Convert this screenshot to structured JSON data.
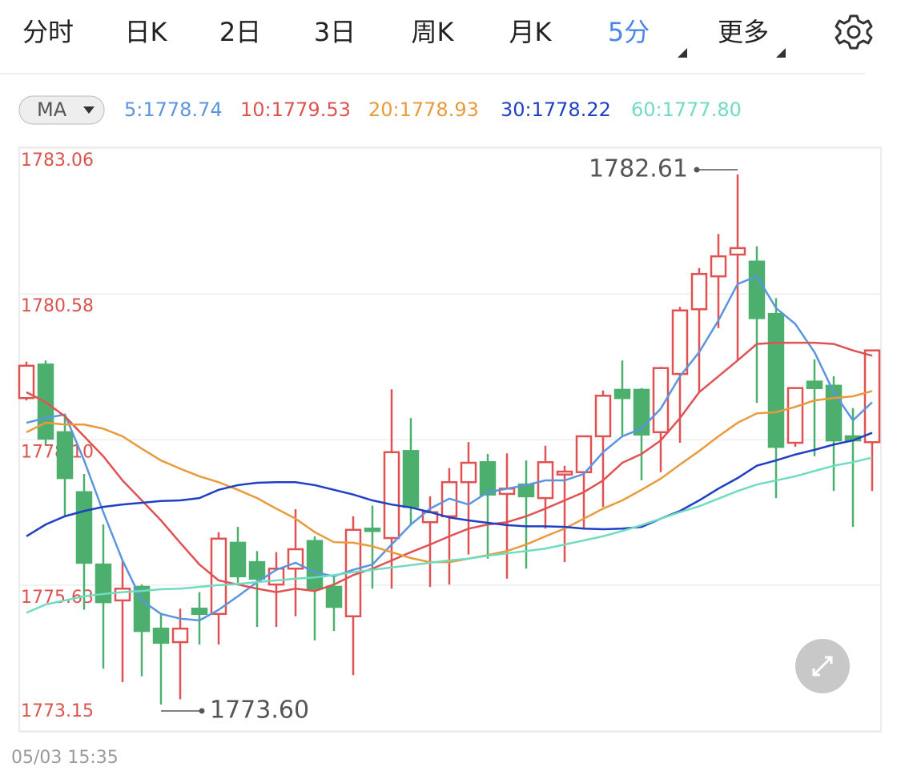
{
  "tabs": {
    "items": [
      "分时",
      "日K",
      "2日",
      "3日",
      "周K",
      "月K",
      "5分",
      "更多"
    ],
    "active": 6
  },
  "ma_button": "MA",
  "chart_data": {
    "type": "candlestick",
    "up_color": "#e05252",
    "down_color": "#4caf6e",
    "ylim": [
      1773.15,
      1783.06
    ],
    "yticks": [
      1783.06,
      1780.58,
      {
        "value": 1778.1,
        "label": "1778.10"
      },
      1775.63,
      1773.15
    ],
    "grid": true,
    "open": [
      1778.81,
      1779.38,
      1778.23,
      1777.21,
      1775.98,
      1775.37,
      1775.6,
      1774.89,
      1774.66,
      1775.23,
      1775.14,
      1776.35,
      1776.02,
      1775.64,
      1775.91,
      1776.38,
      1775.6,
      1775.1,
      1776.59,
      1776.43,
      1777.91,
      1776.7,
      1776.8,
      1777.38,
      1777.72,
      1777.18,
      1777.34,
      1777.11,
      1777.51,
      1777.55,
      1778.16,
      1778.95,
      1778.95,
      1778.23,
      1779.22,
      1780.32,
      1780.88,
      1781.25,
      1781.13,
      1780.24,
      1778.05,
      1779.09,
      1779.02,
      1778.16,
      1778.06
    ],
    "high": [
      1779.43,
      1779.45,
      1778.5,
      1777.52,
      1776.66,
      1776.05,
      1775.64,
      1775.16,
      1775.23,
      1775.51,
      1776.53,
      1776.62,
      1776.21,
      1776.19,
      1776.92,
      1776.46,
      1775.78,
      1776.8,
      1776.98,
      1778.96,
      1778.47,
      1777.14,
      1777.62,
      1778.06,
      1777.86,
      1777.87,
      1777.75,
      1778.0,
      1777.66,
      1778.16,
      1778.94,
      1779.45,
      1778.98,
      1779.34,
      1780.36,
      1781.02,
      1781.6,
      1782.61,
      1781.39,
      1780.51,
      1778.98,
      1779.47,
      1779.18,
      1778.64,
      1779.62
    ],
    "low": [
      1778.77,
      1778.02,
      1776.8,
      1775.21,
      1774.21,
      1773.98,
      1774.08,
      1773.6,
      1773.69,
      1774.62,
      1774.62,
      1775.67,
      1774.92,
      1774.92,
      1775.1,
      1774.69,
      1774.85,
      1774.1,
      1775.57,
      1775.57,
      1776.66,
      1775.6,
      1775.64,
      1776.15,
      1776.08,
      1775.74,
      1775.91,
      1776.59,
      1776.02,
      1776.59,
      1776.96,
      1778.16,
      1777.41,
      1777.55,
      1778.05,
      1778.91,
      1780.0,
      1779.45,
      1778.73,
      1777.11,
      1777.98,
      1777.82,
      1777.23,
      1776.62,
      1777.23
    ],
    "close": [
      1779.36,
      1778.12,
      1777.45,
      1776.01,
      1775.34,
      1775.57,
      1774.85,
      1774.65,
      1774.89,
      1775.14,
      1776.42,
      1775.78,
      1775.74,
      1775.91,
      1776.24,
      1775.57,
      1775.26,
      1776.57,
      1776.55,
      1777.89,
      1776.96,
      1776.87,
      1777.38,
      1777.71,
      1777.17,
      1777.27,
      1777.14,
      1777.72,
      1777.56,
      1778.16,
      1778.85,
      1778.81,
      1778.19,
      1779.32,
      1780.3,
      1780.92,
      1781.22,
      1781.36,
      1780.17,
      1777.98,
      1778.98,
      1778.98,
      1778.09,
      1778.09,
      1779.62
    ],
    "ma_series": [
      {
        "name": "5:1778.74",
        "color": "#5b95e0",
        "values": [
          1778.39,
          1778.47,
          1778.53,
          1777.75,
          1776.87,
          1776.05,
          1775.37,
          1775.14,
          1775.06,
          1775.03,
          1775.21,
          1775.44,
          1775.68,
          1775.89,
          1776.01,
          1775.85,
          1775.78,
          1775.89,
          1775.98,
          1776.32,
          1776.66,
          1776.93,
          1777.1,
          1777.0,
          1777.21,
          1777.27,
          1777.33,
          1777.41,
          1777.41,
          1777.52,
          1777.89,
          1778.16,
          1778.29,
          1778.63,
          1779.18,
          1779.59,
          1780.13,
          1780.75,
          1780.88,
          1780.34,
          1780.07,
          1779.59,
          1778.91,
          1778.43,
          1778.74
        ]
      },
      {
        "name": "10:1779.53",
        "color": "#e05252",
        "values": [
          1778.91,
          1778.74,
          1778.5,
          1778.16,
          1777.82,
          1777.41,
          1777.07,
          1776.73,
          1776.35,
          1775.98,
          1775.71,
          1775.64,
          1775.57,
          1775.51,
          1775.57,
          1775.53,
          1775.64,
          1775.8,
          1775.91,
          1776.05,
          1776.19,
          1776.32,
          1776.46,
          1776.59,
          1776.66,
          1776.7,
          1776.8,
          1776.93,
          1777.07,
          1777.21,
          1777.41,
          1777.71,
          1777.86,
          1778.09,
          1778.47,
          1778.91,
          1779.18,
          1779.45,
          1779.73,
          1779.75,
          1779.75,
          1779.75,
          1779.73,
          1779.62,
          1779.53
        ]
      },
      {
        "name": "20:1778.93",
        "color": "#e89a3c",
        "values": [
          1778.23,
          1778.39,
          1778.36,
          1778.36,
          1778.29,
          1778.16,
          1777.95,
          1777.75,
          1777.61,
          1777.48,
          1777.38,
          1777.25,
          1777.11,
          1776.93,
          1776.76,
          1776.53,
          1776.36,
          1776.35,
          1776.29,
          1776.19,
          1776.09,
          1776.02,
          1776.02,
          1776.08,
          1776.14,
          1776.21,
          1776.32,
          1776.46,
          1776.59,
          1776.76,
          1776.93,
          1777.07,
          1777.25,
          1777.44,
          1777.68,
          1777.91,
          1778.16,
          1778.39,
          1778.55,
          1778.57,
          1778.66,
          1778.77,
          1778.81,
          1778.84,
          1778.93
        ]
      },
      {
        "name": "30:1778.22",
        "color": "#1f3fc4",
        "values": [
          1776.46,
          1776.66,
          1776.8,
          1776.89,
          1776.96,
          1777.0,
          1777.03,
          1777.06,
          1777.07,
          1777.11,
          1777.25,
          1777.33,
          1777.37,
          1777.38,
          1777.38,
          1777.33,
          1777.25,
          1777.17,
          1777.07,
          1777.0,
          1776.95,
          1776.87,
          1776.78,
          1776.73,
          1776.69,
          1776.65,
          1776.63,
          1776.63,
          1776.62,
          1776.59,
          1776.58,
          1776.59,
          1776.62,
          1776.76,
          1776.89,
          1777.07,
          1777.27,
          1777.45,
          1777.66,
          1777.75,
          1777.85,
          1777.93,
          1778.02,
          1778.09,
          1778.22
        ]
      },
      {
        "name": "60:1777.80",
        "color": "#6fdcc2",
        "values": [
          1775.16,
          1775.3,
          1775.37,
          1775.44,
          1775.48,
          1775.51,
          1775.53,
          1775.56,
          1775.57,
          1775.6,
          1775.63,
          1775.65,
          1775.68,
          1775.71,
          1775.74,
          1775.76,
          1775.8,
          1775.85,
          1775.89,
          1775.93,
          1775.97,
          1776.01,
          1776.05,
          1776.08,
          1776.13,
          1776.17,
          1776.21,
          1776.25,
          1776.32,
          1776.39,
          1776.46,
          1776.55,
          1776.65,
          1776.76,
          1776.87,
          1776.97,
          1777.1,
          1777.23,
          1777.34,
          1777.41,
          1777.48,
          1777.57,
          1777.66,
          1777.72,
          1777.8
        ]
      }
    ],
    "annotations": [
      1782.61,
      {
        "value": 1773.6,
        "label": "1773.60"
      }
    ]
  },
  "timestamp": "05/03 15:35"
}
